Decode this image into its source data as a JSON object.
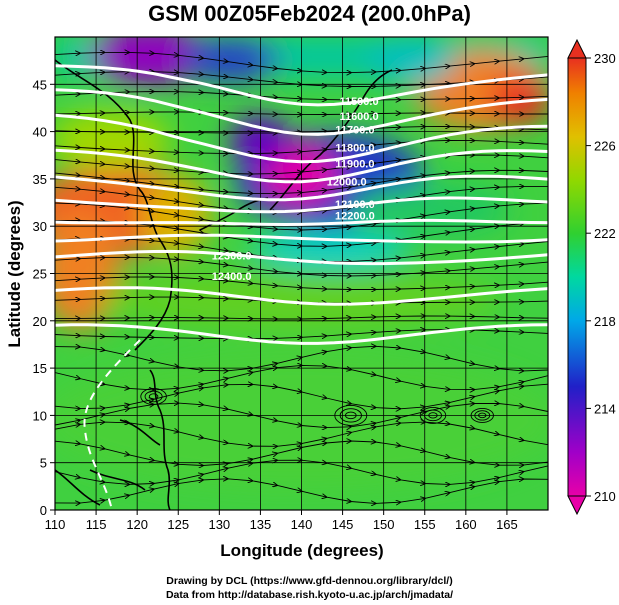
{
  "title": "GSM 00Z05Feb2024 (200.0hPa)",
  "x_axis": {
    "label": "Longitude (degrees)",
    "ticks": [
      "110",
      "115",
      "120",
      "125",
      "130",
      "135",
      "140",
      "145",
      "150",
      "155",
      "160",
      "165"
    ],
    "range": [
      110,
      170
    ]
  },
  "y_axis": {
    "label": "Latitude (degrees)",
    "ticks": [
      "0",
      "5",
      "10",
      "15",
      "20",
      "25",
      "30",
      "35",
      "40",
      "45"
    ],
    "range": [
      0,
      50
    ]
  },
  "colorbar": {
    "ticks": [
      "230",
      "226",
      "222",
      "218",
      "214",
      "210"
    ],
    "range": [
      210,
      230
    ],
    "colors": [
      "#e800a8",
      "#8a00c8",
      "#2020c8",
      "#00a8e8",
      "#00d8a0",
      "#30d030",
      "#88d800",
      "#e0c000",
      "#f08000",
      "#e83020"
    ]
  },
  "contour_labels": [
    "11500.0",
    "11600.0",
    "11700.0",
    "11800.0",
    "11900.0",
    "12000.0",
    "12100.0",
    "12200.0",
    "12300.0",
    "12400.0"
  ],
  "credits": {
    "line1": "Drawing by DCL (https://www.gfd-dennou.org/library/dcl/)",
    "line2": "Data from http://database.rish.kyoto-u.ac.jp/arch/jmadata/"
  }
}
